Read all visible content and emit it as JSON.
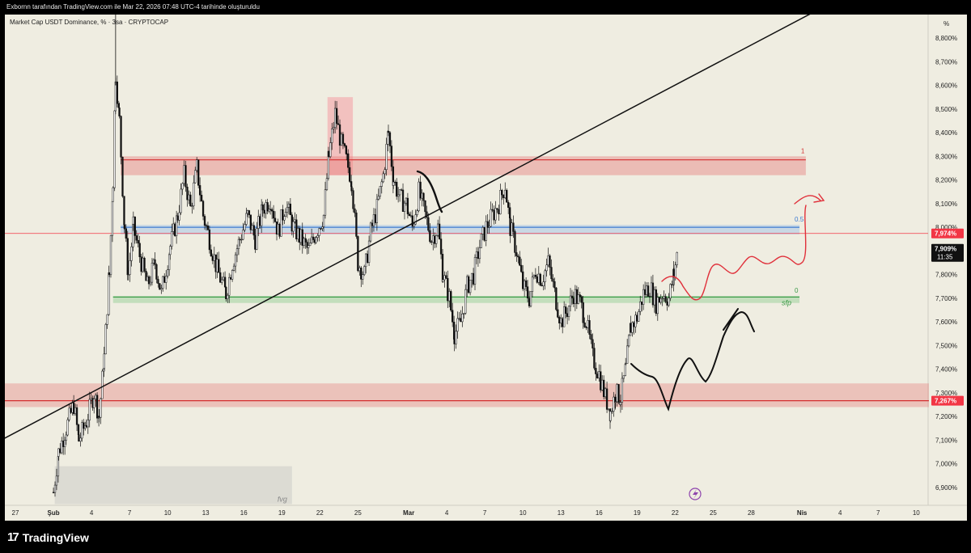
{
  "header": {
    "caption": "Exbornn tarafından TradingView.com ile Mar 22, 2026 07:48 UTC-4 tarihinde oluşturuldu"
  },
  "chart_data": {
    "type": "candlestick",
    "title": "Market Cap USDT Dominance, % · 3sa · CRYPTOCAP",
    "unit_label": "%",
    "ylim": [
      6.83,
      8.92
    ],
    "x_ticks": [
      {
        "label": "27",
        "day": -2
      },
      {
        "label": "Şub",
        "day": 1
      },
      {
        "label": "4",
        "day": 4
      },
      {
        "label": "7",
        "day": 7
      },
      {
        "label": "10",
        "day": 10
      },
      {
        "label": "13",
        "day": 13
      },
      {
        "label": "16",
        "day": 16
      },
      {
        "label": "19",
        "day": 19
      },
      {
        "label": "22",
        "day": 22
      },
      {
        "label": "25",
        "day": 25
      },
      {
        "label": "Mar",
        "day": 29
      },
      {
        "label": "4",
        "day": 32
      },
      {
        "label": "7",
        "day": 35
      },
      {
        "label": "10",
        "day": 38
      },
      {
        "label": "13",
        "day": 41
      },
      {
        "label": "16",
        "day": 44
      },
      {
        "label": "19",
        "day": 47
      },
      {
        "label": "22",
        "day": 50
      },
      {
        "label": "25",
        "day": 53
      },
      {
        "label": "28",
        "day": 56
      },
      {
        "label": "Nis",
        "day": 60
      },
      {
        "label": "4",
        "day": 63
      },
      {
        "label": "7",
        "day": 66
      },
      {
        "label": "10",
        "day": 69
      }
    ],
    "y_ticks": [
      "6,900%",
      "7,000%",
      "7,100%",
      "7,200%",
      "7,300%",
      "7,400%",
      "7,500%",
      "7,600%",
      "7,700%",
      "7,800%",
      "7,900%",
      "8,000%",
      "8,100%",
      "8,200%",
      "8,300%",
      "8,400%",
      "8,500%",
      "8,600%",
      "8,700%",
      "8,800%"
    ],
    "y_tick_values": [
      6.9,
      7.0,
      7.1,
      7.2,
      7.3,
      7.4,
      7.5,
      7.6,
      7.7,
      7.8,
      7.9,
      8.0,
      8.1,
      8.2,
      8.3,
      8.4,
      8.5,
      8.6,
      8.7,
      8.8
    ],
    "price_path": [
      {
        "day": 1.0,
        "v": 6.88
      },
      {
        "day": 1.4,
        "v": 7.05
      },
      {
        "day": 2.0,
        "v": 7.15
      },
      {
        "day": 2.6,
        "v": 7.25
      },
      {
        "day": 3.0,
        "v": 7.1
      },
      {
        "day": 3.6,
        "v": 7.18
      },
      {
        "day": 4.2,
        "v": 7.3
      },
      {
        "day": 4.6,
        "v": 7.2
      },
      {
        "day": 5.0,
        "v": 7.45
      },
      {
        "day": 5.4,
        "v": 7.8
      },
      {
        "day": 5.7,
        "v": 8.2
      },
      {
        "day": 5.9,
        "v": 8.65
      },
      {
        "day": 6.2,
        "v": 8.45
      },
      {
        "day": 6.6,
        "v": 8.0
      },
      {
        "day": 6.9,
        "v": 7.8
      },
      {
        "day": 7.3,
        "v": 8.0
      },
      {
        "day": 7.8,
        "v": 7.88
      },
      {
        "day": 8.4,
        "v": 7.75
      },
      {
        "day": 9.0,
        "v": 7.85
      },
      {
        "day": 9.5,
        "v": 7.72
      },
      {
        "day": 10.2,
        "v": 7.92
      },
      {
        "day": 10.8,
        "v": 8.05
      },
      {
        "day": 11.3,
        "v": 8.22
      },
      {
        "day": 11.8,
        "v": 8.08
      },
      {
        "day": 12.3,
        "v": 8.25
      },
      {
        "day": 12.8,
        "v": 8.05
      },
      {
        "day": 13.3,
        "v": 7.95
      },
      {
        "day": 13.9,
        "v": 7.82
      },
      {
        "day": 14.6,
        "v": 7.72
      },
      {
        "day": 15.1,
        "v": 7.85
      },
      {
        "day": 15.7,
        "v": 7.95
      },
      {
        "day": 16.3,
        "v": 8.05
      },
      {
        "day": 16.9,
        "v": 7.95
      },
      {
        "day": 17.5,
        "v": 8.08
      },
      {
        "day": 18.1,
        "v": 8.12
      },
      {
        "day": 18.7,
        "v": 7.98
      },
      {
        "day": 19.3,
        "v": 8.1
      },
      {
        "day": 19.9,
        "v": 8.0
      },
      {
        "day": 20.5,
        "v": 7.95
      },
      {
        "day": 21.1,
        "v": 7.9
      },
      {
        "day": 21.7,
        "v": 7.98
      },
      {
        "day": 22.3,
        "v": 8.05
      },
      {
        "day": 22.7,
        "v": 8.3
      },
      {
        "day": 23.2,
        "v": 8.48
      },
      {
        "day": 23.7,
        "v": 8.35
      },
      {
        "day": 24.1,
        "v": 8.28
      },
      {
        "day": 24.5,
        "v": 8.2
      },
      {
        "day": 25.0,
        "v": 7.85
      },
      {
        "day": 25.5,
        "v": 7.8
      },
      {
        "day": 26.0,
        "v": 7.98
      },
      {
        "day": 26.5,
        "v": 8.08
      },
      {
        "day": 27.0,
        "v": 8.22
      },
      {
        "day": 27.4,
        "v": 8.4
      },
      {
        "day": 27.8,
        "v": 8.2
      },
      {
        "day": 28.3,
        "v": 8.12
      },
      {
        "day": 28.8,
        "v": 8.1
      },
      {
        "day": 29.3,
        "v": 8.0
      },
      {
        "day": 29.8,
        "v": 8.15
      },
      {
        "day": 30.3,
        "v": 8.05
      },
      {
        "day": 30.8,
        "v": 7.95
      },
      {
        "day": 31.3,
        "v": 8.0
      },
      {
        "day": 31.7,
        "v": 7.8
      },
      {
        "day": 32.2,
        "v": 7.7
      },
      {
        "day": 32.6,
        "v": 7.55
      },
      {
        "day": 33.1,
        "v": 7.6
      },
      {
        "day": 33.6,
        "v": 7.75
      },
      {
        "day": 34.1,
        "v": 7.8
      },
      {
        "day": 34.6,
        "v": 7.92
      },
      {
        "day": 35.1,
        "v": 8.0
      },
      {
        "day": 35.6,
        "v": 8.05
      },
      {
        "day": 36.1,
        "v": 8.1
      },
      {
        "day": 36.6,
        "v": 8.18
      },
      {
        "day": 37.0,
        "v": 8.0
      },
      {
        "day": 37.5,
        "v": 7.9
      },
      {
        "day": 38.0,
        "v": 7.75
      },
      {
        "day": 38.5,
        "v": 7.7
      },
      {
        "day": 39.0,
        "v": 7.82
      },
      {
        "day": 39.5,
        "v": 7.78
      },
      {
        "day": 40.0,
        "v": 7.85
      },
      {
        "day": 40.5,
        "v": 7.72
      },
      {
        "day": 41.0,
        "v": 7.6
      },
      {
        "day": 41.5,
        "v": 7.65
      },
      {
        "day": 42.0,
        "v": 7.72
      },
      {
        "day": 42.5,
        "v": 7.68
      },
      {
        "day": 43.0,
        "v": 7.6
      },
      {
        "day": 43.5,
        "v": 7.45
      },
      {
        "day": 44.0,
        "v": 7.38
      },
      {
        "day": 44.5,
        "v": 7.28
      },
      {
        "day": 44.9,
        "v": 7.22
      },
      {
        "day": 45.3,
        "v": 7.3
      },
      {
        "day": 45.7,
        "v": 7.28
      },
      {
        "day": 46.1,
        "v": 7.4
      },
      {
        "day": 46.5,
        "v": 7.58
      },
      {
        "day": 47.0,
        "v": 7.62
      },
      {
        "day": 47.5,
        "v": 7.72
      },
      {
        "day": 48.0,
        "v": 7.75
      },
      {
        "day": 48.5,
        "v": 7.68
      },
      {
        "day": 49.0,
        "v": 7.72
      },
      {
        "day": 49.5,
        "v": 7.7
      },
      {
        "day": 49.9,
        "v": 7.8
      },
      {
        "day": 50.2,
        "v": 7.9
      }
    ],
    "zones": [
      {
        "label": "1",
        "low": 8.22,
        "high": 8.3,
        "line": 8.285,
        "start_day": 6.3,
        "end_day": 60.3,
        "color": "#e57373"
      },
      {
        "label": "0.5",
        "low": 7.97,
        "high": 8.01,
        "line": 8.0,
        "start_day": 6.3,
        "end_day": 59.8,
        "color": "#90b8e8"
      },
      {
        "label": "0",
        "low": 7.68,
        "high": 7.71,
        "line": 7.705,
        "start_day": 5.7,
        "end_day": 59.8,
        "color": "#81c784"
      },
      {
        "label": "",
        "low": 7.24,
        "high": 7.34,
        "line": 7.267,
        "start_day": -3.5,
        "end_day": 70,
        "color": "#e57373"
      }
    ],
    "sfp_label": "sfp",
    "fvg_label": "fvg",
    "fvg_box": {
      "low": 6.83,
      "high": 6.99,
      "start_day": 1.1,
      "end_day": 19.8
    },
    "top_highlight": {
      "low": 8.22,
      "high": 8.55,
      "start_day": 22.6,
      "end_day": 24.6
    },
    "trendline": {
      "day1": -3.5,
      "v1": 7.09,
      "day2": 62,
      "v2": 8.94
    },
    "current_price": {
      "value": 7.909,
      "label": "7,909%",
      "timer": "11:35"
    },
    "level_974": {
      "value": 7.974,
      "label": "7,974%"
    },
    "level_267": {
      "value": 7.267,
      "label": "7,267%"
    }
  },
  "footer": {
    "brand": "TradingView"
  },
  "colors": {
    "up": "#ffffff",
    "down": "#000000",
    "accent_red": "#f23645"
  }
}
